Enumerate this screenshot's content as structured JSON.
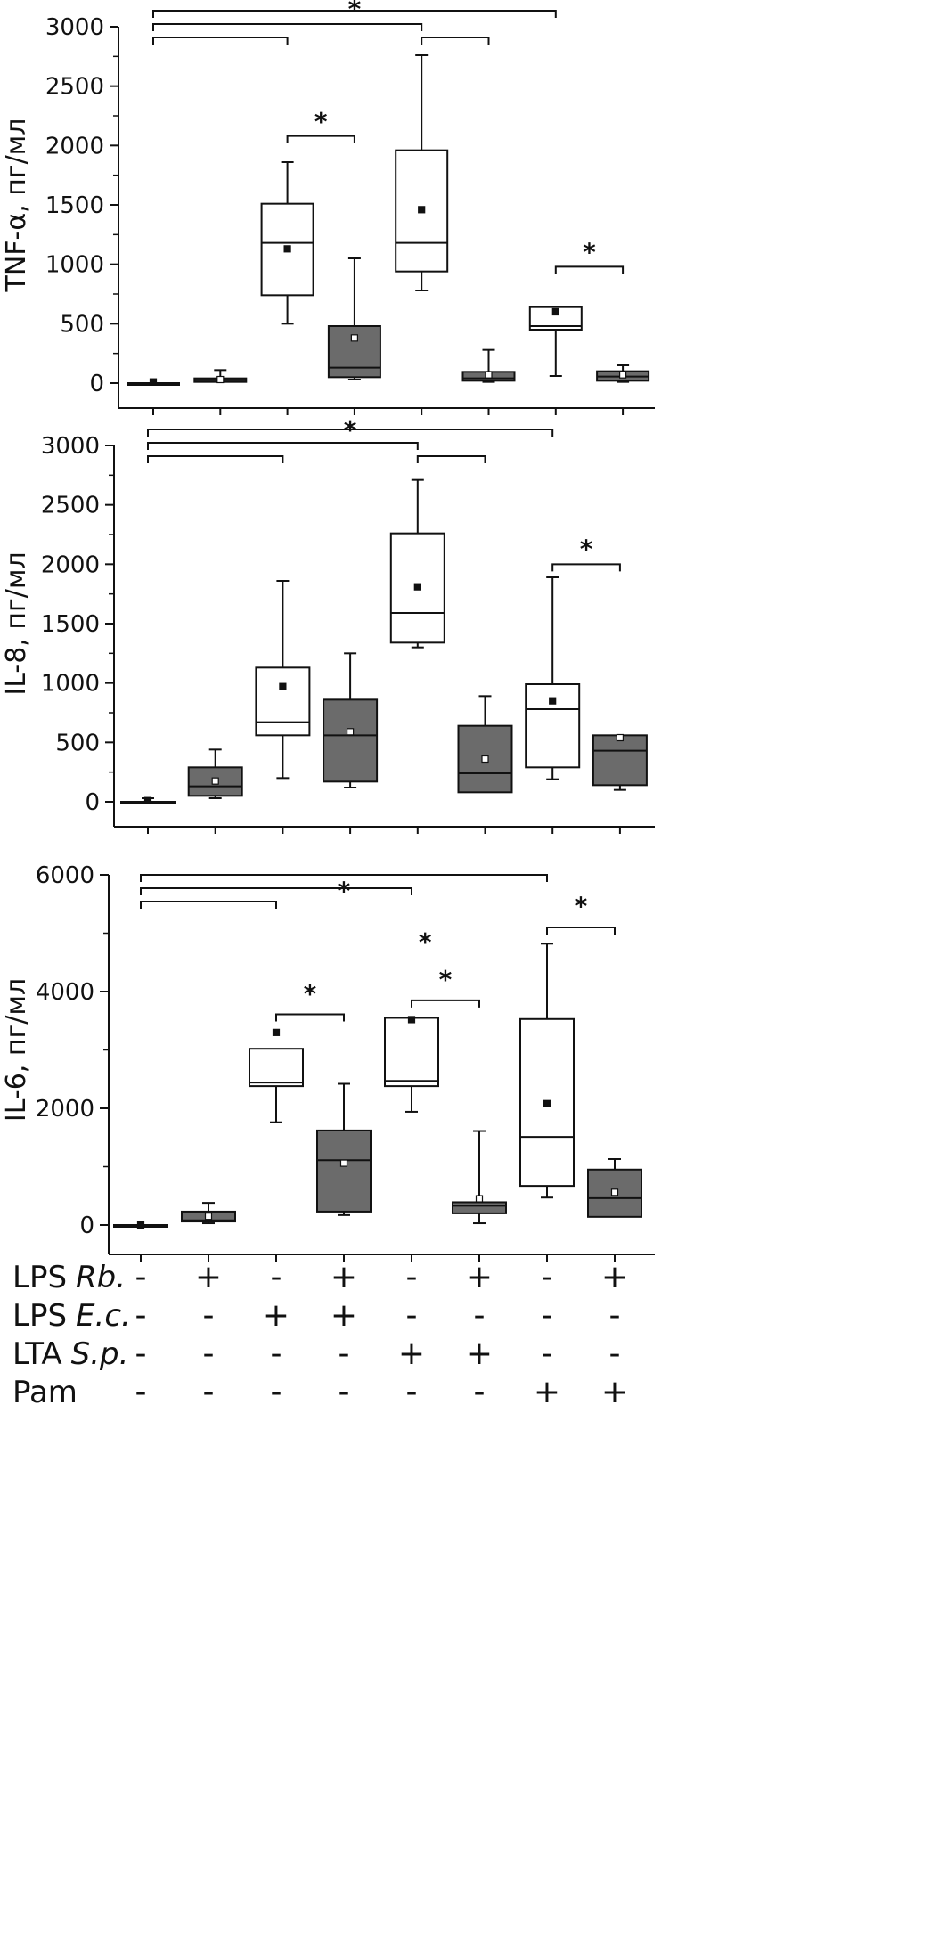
{
  "colors": {
    "open_box": "#ffffff",
    "filled_box": "#6b6b6b",
    "line": "#111111"
  },
  "chart_data": [
    {
      "type": "box",
      "ylabel": "TNF-α, пг/мл",
      "ylim": [
        0,
        3000
      ],
      "yticks": [
        0,
        500,
        1000,
        1500,
        2000,
        2500,
        3000
      ],
      "groups": [
        {
          "fill": "open",
          "min": 0,
          "q1": 0,
          "median": 0,
          "q3": 0,
          "max": 0,
          "mean": 10
        },
        {
          "fill": "filled",
          "min": 10,
          "q1": 10,
          "median": 25,
          "q3": 40,
          "max": 110,
          "mean": 30
        },
        {
          "fill": "open",
          "min": 500,
          "q1": 740,
          "median": 1180,
          "q3": 1510,
          "max": 1860,
          "mean": 1130
        },
        {
          "fill": "filled",
          "min": 30,
          "q1": 50,
          "median": 130,
          "q3": 480,
          "max": 1050,
          "mean": 380
        },
        {
          "fill": "open",
          "min": 780,
          "q1": 940,
          "median": 1180,
          "q3": 1960,
          "max": 2760,
          "mean": 1460
        },
        {
          "fill": "filled",
          "min": 10,
          "q1": 20,
          "median": 40,
          "q3": 95,
          "max": 280,
          "mean": 70
        },
        {
          "fill": "open",
          "min": 60,
          "q1": 450,
          "median": 480,
          "q3": 640,
          "max": 640,
          "mean": 600
        },
        {
          "fill": "filled",
          "min": 10,
          "q1": 20,
          "median": 55,
          "q3": 100,
          "max": 150,
          "mean": 70
        }
      ],
      "brackets": [
        {
          "from": 1,
          "to": 3,
          "level": 1
        },
        {
          "from": 1,
          "to": 5,
          "level": 2
        },
        {
          "from": 1,
          "to": 7,
          "level": 3
        },
        {
          "from": 5,
          "to": 6,
          "level": 1
        },
        {
          "from": 3,
          "to": 4,
          "y": 2080
        },
        {
          "from": 7,
          "to": 8,
          "y": 980
        }
      ],
      "stars": [
        {
          "text": "*",
          "x": 4.0,
          "y": 3080
        },
        {
          "text": "*",
          "x": 3.5,
          "y": 2130
        },
        {
          "text": "*",
          "x": 7.5,
          "y": 1030
        }
      ]
    },
    {
      "type": "box",
      "ylabel": "IL-8, пг/мл",
      "ylim": [
        0,
        3000
      ],
      "yticks": [
        0,
        500,
        1000,
        1500,
        2000,
        2500,
        3000
      ],
      "groups": [
        {
          "fill": "open",
          "min": 0,
          "q1": 0,
          "median": 0,
          "q3": 0,
          "max": 30,
          "mean": 10
        },
        {
          "fill": "filled",
          "min": 30,
          "q1": 50,
          "median": 130,
          "q3": 290,
          "max": 440,
          "mean": 175
        },
        {
          "fill": "open",
          "min": 200,
          "q1": 560,
          "median": 670,
          "q3": 1130,
          "max": 1860,
          "mean": 970
        },
        {
          "fill": "filled",
          "min": 120,
          "q1": 170,
          "median": 560,
          "q3": 860,
          "max": 1250,
          "mean": 590
        },
        {
          "fill": "open",
          "min": 1300,
          "q1": 1340,
          "median": 1590,
          "q3": 2260,
          "max": 2710,
          "mean": 1810
        },
        {
          "fill": "filled",
          "min": 80,
          "q1": 80,
          "median": 240,
          "q3": 640,
          "max": 890,
          "mean": 360
        },
        {
          "fill": "open",
          "min": 190,
          "q1": 290,
          "median": 780,
          "q3": 990,
          "max": 1890,
          "mean": 850
        },
        {
          "fill": "filled",
          "min": 100,
          "q1": 140,
          "median": 430,
          "q3": 560,
          "max": 560,
          "mean": 540
        }
      ],
      "brackets": [
        {
          "from": 1,
          "to": 3,
          "level": 1
        },
        {
          "from": 1,
          "to": 5,
          "level": 2
        },
        {
          "from": 1,
          "to": 7,
          "level": 3
        },
        {
          "from": 5,
          "to": 6,
          "level": 1
        },
        {
          "from": 7,
          "to": 8,
          "y": 2000
        }
      ],
      "stars": [
        {
          "text": "*",
          "x": 4.0,
          "y": 3060
        },
        {
          "text": "*",
          "x": 7.5,
          "y": 2060
        }
      ]
    },
    {
      "type": "box",
      "ylabel": "IL-6, пг/мл",
      "ylim": [
        0,
        6000
      ],
      "yticks": [
        0,
        2000,
        4000,
        6000
      ],
      "groups": [
        {
          "fill": "open",
          "min": 0,
          "q1": 0,
          "median": 0,
          "q3": 0,
          "max": 0,
          "mean": 0
        },
        {
          "fill": "filled",
          "min": 30,
          "q1": 60,
          "median": 80,
          "q3": 230,
          "max": 380,
          "mean": 150
        },
        {
          "fill": "open",
          "min": 1760,
          "q1": 2380,
          "median": 2440,
          "q3": 3020,
          "max": 3020,
          "mean": 3300
        },
        {
          "fill": "filled",
          "min": 170,
          "q1": 230,
          "median": 1110,
          "q3": 1620,
          "max": 2420,
          "mean": 1060
        },
        {
          "fill": "open",
          "min": 1940,
          "q1": 2380,
          "median": 2470,
          "q3": 3550,
          "max": 3550,
          "mean": 3520
        },
        {
          "fill": "filled",
          "min": 30,
          "q1": 200,
          "median": 330,
          "q3": 390,
          "max": 1610,
          "mean": 450
        },
        {
          "fill": "open",
          "min": 470,
          "q1": 670,
          "median": 1510,
          "q3": 3530,
          "max": 4820,
          "mean": 2080
        },
        {
          "fill": "filled",
          "min": 140,
          "q1": 140,
          "median": 460,
          "q3": 950,
          "max": 1130,
          "mean": 560
        }
      ],
      "brackets": [
        {
          "from": 1,
          "to": 3,
          "level": 1
        },
        {
          "from": 1,
          "to": 5,
          "level": 2
        },
        {
          "from": 1,
          "to": 7,
          "level": 3
        },
        {
          "from": 3,
          "to": 4,
          "y": 3610
        },
        {
          "from": 5,
          "to": 6,
          "y": 3850
        },
        {
          "from": 7,
          "to": 8,
          "y": 5100
        }
      ],
      "stars": [
        {
          "text": "*",
          "x": 4.0,
          "y": 5580
        },
        {
          "text": "*",
          "x": 5.2,
          "y": 4700
        },
        {
          "text": "*",
          "x": 3.5,
          "y": 3820
        },
        {
          "text": "*",
          "x": 5.5,
          "y": 4060
        },
        {
          "text": "*",
          "x": 7.5,
          "y": 5320
        }
      ]
    }
  ],
  "conditions": {
    "rows": [
      {
        "label": "LPS",
        "species": "Rb.",
        "values": [
          "-",
          "+",
          "-",
          "+",
          "-",
          "+",
          "-",
          "+"
        ]
      },
      {
        "label": "LPS",
        "species": "E.c.",
        "values": [
          "-",
          "-",
          "+",
          "+",
          "-",
          "-",
          "-",
          "-"
        ]
      },
      {
        "label": "LTA",
        "species": "S.p.",
        "values": [
          "-",
          "-",
          "-",
          "-",
          "+",
          "+",
          "-",
          "-"
        ]
      },
      {
        "label": "Pam",
        "species": "",
        "values": [
          "-",
          "-",
          "-",
          "-",
          "-",
          "-",
          "+",
          "+"
        ]
      }
    ]
  }
}
